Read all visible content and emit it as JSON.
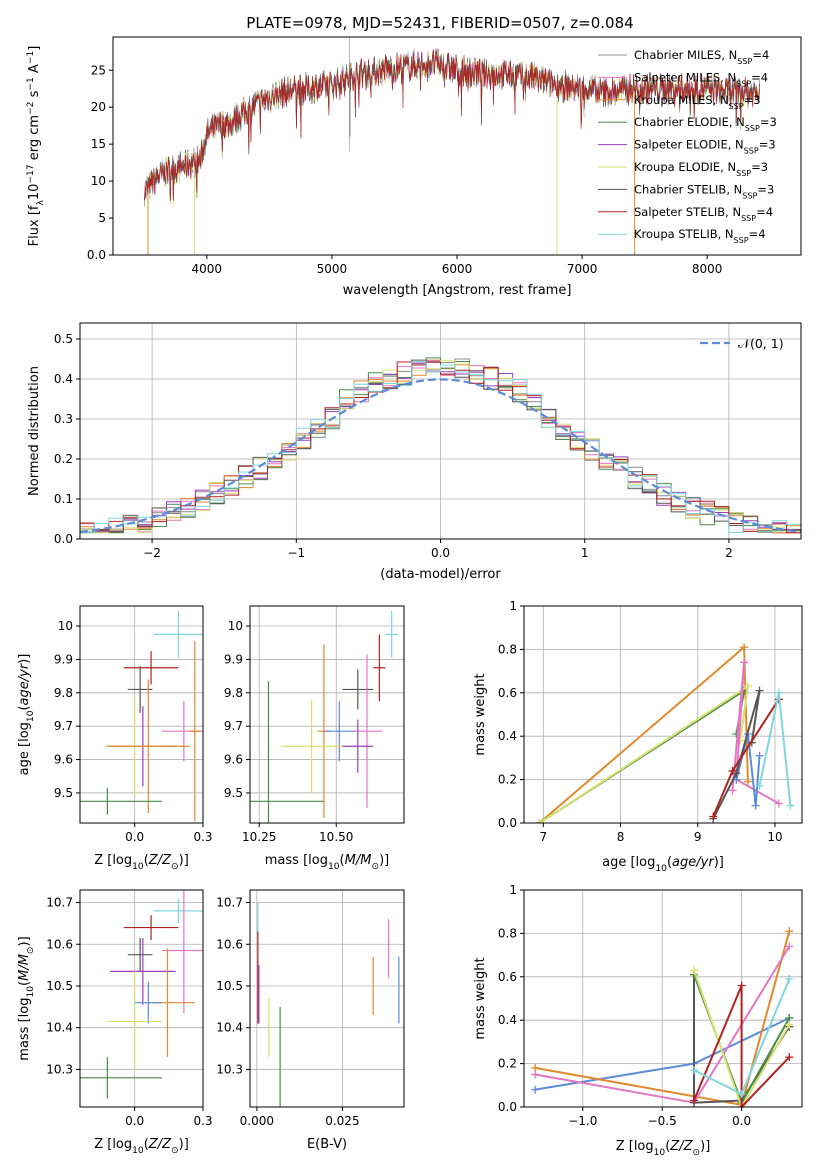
{
  "figure": {
    "title": "PLATE=0978, MJD=52431, FIBERID=0507, z=0.084"
  },
  "chart_data": [
    {
      "id": "spectrum",
      "type": "line",
      "xlabel": "wavelength [Angstrom, rest frame]",
      "ylabel": "Flux [f_λ10^-17 erg cm^-2 s^-1 A^-1]",
      "xlim": [
        3250,
        8750
      ],
      "ylim": [
        0,
        29.5
      ],
      "xticks": [
        4000,
        5000,
        6000,
        7000,
        8000
      ],
      "yticks": [
        0,
        5,
        10,
        15,
        20,
        25
      ],
      "grid": false,
      "legend_position": "top-right",
      "continuum": {
        "x": [
          3500,
          3600,
          3700,
          3800,
          3900,
          3950,
          4000,
          4100,
          4200,
          4400,
          4600,
          4800,
          5000,
          5200,
          5400,
          5600,
          5800,
          6000,
          6200,
          6400,
          6600,
          6800,
          7000,
          7200,
          7400,
          7600,
          7800,
          8000,
          8200,
          8400
        ],
        "y": [
          8.5,
          10.5,
          11.5,
          12.0,
          12.5,
          13.0,
          16.5,
          17.5,
          18.0,
          20.5,
          22.0,
          22.5,
          23.0,
          24.5,
          25.0,
          25.5,
          26.0,
          25.0,
          24.5,
          24.5,
          24.0,
          23.0,
          22.5,
          22.0,
          22.5,
          22.5,
          22.5,
          22.5,
          22.0,
          22.0
        ]
      },
      "series": [
        {
          "name": "Chabrier MILES, N_SSP=4",
          "color": "#8c8c8c"
        },
        {
          "name": "Salpeter MILES, N_SSP=4",
          "color": "#e377c2"
        },
        {
          "name": "Kroupa MILES, N_SSP=3",
          "color": "#e08a2c"
        },
        {
          "name": "Chabrier ELODIE, N_SSP=3",
          "color": "#4a8a4a"
        },
        {
          "name": "Salpeter ELODIE, N_SSP=3",
          "color": "#9b3fbf"
        },
        {
          "name": "Kroupa ELODIE, N_SSP=3",
          "color": "#d8e070"
        },
        {
          "name": "Chabrier STELIB, N_SSP=3",
          "color": "#555555"
        },
        {
          "name": "Salpeter STELIB, N_SSP=4",
          "color": "#b22222"
        },
        {
          "name": "Kroupa STELIB, N_SSP=4",
          "color": "#7fd6dc"
        }
      ]
    },
    {
      "id": "residuals",
      "type": "line",
      "xlabel": "(data-model)/error",
      "ylabel": "Normed distribution",
      "xlim": [
        -2.5,
        2.5
      ],
      "ylim": [
        0,
        0.54
      ],
      "xticks": [
        -2,
        -1,
        0,
        1,
        2
      ],
      "yticks": [
        0.0,
        0.1,
        0.2,
        0.3,
        0.4,
        0.5
      ],
      "grid": true,
      "legend_position": "top-right",
      "gaussian": {
        "name": "𝒩(0, 1)",
        "color": "#5b8bd9"
      },
      "hist_bins": 50,
      "hist_colors": [
        "#8c8c8c",
        "#e377c2",
        "#e08a2c",
        "#4a8a4a",
        "#9b3fbf",
        "#d8e070",
        "#555555",
        "#b22222",
        "#7fd6dc"
      ]
    },
    {
      "id": "age-vs-Z",
      "type": "scatter",
      "xlabel": "Z [log10(Z/Z⊙)]",
      "ylabel": "age [log10(age/yr)]",
      "xlim": [
        -0.2,
        0.25
      ],
      "ylim": [
        9.41,
        10.06
      ],
      "xticks": [
        0.0,
        0.25
      ],
      "yticks": [
        9.5,
        9.6,
        9.7,
        9.8,
        9.9,
        10.0
      ],
      "grid": true,
      "points": [
        {
          "x": 0.16,
          "y": 9.975,
          "xerr": 0.09,
          "yerr": 0.07,
          "color": "#7fd6dc"
        },
        {
          "x": 0.06,
          "y": 9.875,
          "xerr": 0.1,
          "yerr": 0.05,
          "color": "#b22222"
        },
        {
          "x": 0.02,
          "y": 9.81,
          "xerr": 0.045,
          "yerr": 0.07,
          "color": "#555555"
        },
        {
          "x": 0.18,
          "y": 9.685,
          "xerr": 0.08,
          "yerr": 0.09,
          "color": "#e377c2"
        },
        {
          "x": 0.22,
          "y": 9.685,
          "xerr": 0.02,
          "yerr": 0.27,
          "color": "#e08a2c"
        },
        {
          "x": 0.03,
          "y": 9.64,
          "xerr": 0.12,
          "yerr": 0.12,
          "color": "#9b3fbf"
        },
        {
          "x": 0.0,
          "y": 9.64,
          "xerr": 0.11,
          "yerr": 0.15,
          "color": "#d8e070"
        },
        {
          "x": 0.05,
          "y": 9.64,
          "xerr": 0.15,
          "yerr": 0.2,
          "color": "#e08a2c"
        },
        {
          "x": -0.1,
          "y": 9.475,
          "xerr": 0.2,
          "yerr": 0.04,
          "color": "#4a8a4a"
        }
      ]
    },
    {
      "id": "age-vs-mass",
      "type": "scatter",
      "xlabel": "mass [log10(M/M⊙)]",
      "ylabel": "",
      "xlim": [
        10.22,
        10.72
      ],
      "ylim": [
        9.41,
        10.06
      ],
      "xticks": [
        10.25,
        10.5
      ],
      "xticklabels": [
        "10.25",
        "10.50"
      ],
      "yticks": [
        9.5,
        9.6,
        9.7,
        9.8,
        9.9,
        10.0
      ],
      "grid": true,
      "points": [
        {
          "x": 10.68,
          "y": 9.975,
          "xerr": 0.02,
          "yerr": 0.07,
          "color": "#7fd6dc"
        },
        {
          "x": 10.64,
          "y": 9.875,
          "xerr": 0.02,
          "yerr": 0.1,
          "color": "#b22222"
        },
        {
          "x": 10.57,
          "y": 9.81,
          "xerr": 0.05,
          "yerr": 0.06,
          "color": "#555555"
        },
        {
          "x": 10.6,
          "y": 9.685,
          "xerr": 0.05,
          "yerr": 0.23,
          "color": "#e377c2"
        },
        {
          "x": 10.46,
          "y": 9.685,
          "xerr": 0.02,
          "yerr": 0.26,
          "color": "#e08a2c"
        },
        {
          "x": 10.57,
          "y": 9.64,
          "xerr": 0.05,
          "yerr": 0.08,
          "color": "#9b3fbf"
        },
        {
          "x": 10.51,
          "y": 9.685,
          "xerr": 0.05,
          "yerr": 0.09,
          "color": "#5b8bd9"
        },
        {
          "x": 10.42,
          "y": 9.64,
          "xerr": 0.1,
          "yerr": 0.14,
          "color": "#d8e070"
        },
        {
          "x": 10.28,
          "y": 9.475,
          "xerr": 0.18,
          "yerr": 0.36,
          "color": "#4a8a4a"
        }
      ]
    },
    {
      "id": "massweight-vs-age",
      "type": "line",
      "xlabel": "age [log10(age/yr)]",
      "ylabel": "mass weight",
      "xlim": [
        6.75,
        10.35
      ],
      "ylim": [
        0,
        1.0
      ],
      "xticks": [
        7,
        8,
        9,
        10
      ],
      "yticks": [
        0.0,
        0.2,
        0.4,
        0.6,
        0.8,
        1.0
      ],
      "grid": true,
      "series": [
        {
          "color": "#e08a2c",
          "x": [
            6.95,
            9.6,
            9.65
          ],
          "y": [
            0.0,
            0.81,
            0.19
          ]
        },
        {
          "color": "#4a8a4a",
          "x": [
            6.95,
            9.6,
            9.5
          ],
          "y": [
            0.0,
            0.61,
            0.41
          ]
        },
        {
          "color": "#d8e070",
          "x": [
            6.95,
            9.65,
            9.55
          ],
          "y": [
            0.0,
            0.63,
            0.38
          ]
        },
        {
          "color": "#e377c2",
          "x": [
            9.45,
            9.6,
            9.5,
            10.05
          ],
          "y": [
            0.15,
            0.74,
            0.2,
            0.09
          ]
        },
        {
          "color": "#5b8bd9",
          "x": [
            9.5,
            9.65,
            9.75,
            9.8
          ],
          "y": [
            0.2,
            0.41,
            0.08,
            0.31
          ]
        },
        {
          "color": "#555555",
          "x": [
            9.2,
            9.5,
            9.8,
            9.7
          ],
          "y": [
            0.02,
            0.23,
            0.61,
            0.37
          ]
        },
        {
          "color": "#b22222",
          "x": [
            9.2,
            9.45,
            10.05
          ],
          "y": [
            0.03,
            0.24,
            0.57
          ]
        },
        {
          "color": "#7fd6dc",
          "x": [
            9.8,
            10.05,
            10.2
          ],
          "y": [
            0.17,
            0.6,
            0.08
          ]
        }
      ]
    },
    {
      "id": "mass-vs-Z",
      "type": "scatter",
      "xlabel": "Z [log10(Z/Z⊙)]",
      "ylabel": "mass [log10(M/M⊙)]",
      "xlim": [
        -0.2,
        0.25
      ],
      "ylim": [
        10.21,
        10.73
      ],
      "xticks": [
        0.0,
        0.25
      ],
      "yticks": [
        10.3,
        10.4,
        10.5,
        10.6,
        10.7
      ],
      "grid": true,
      "points": [
        {
          "x": 0.16,
          "y": 10.68,
          "xerr": 0.09,
          "yerr": 0.03,
          "color": "#7fd6dc"
        },
        {
          "x": 0.06,
          "y": 10.64,
          "xerr": 0.1,
          "yerr": 0.03,
          "color": "#b22222"
        },
        {
          "x": 0.02,
          "y": 10.575,
          "xerr": 0.045,
          "yerr": 0.04,
          "color": "#555555"
        },
        {
          "x": 0.18,
          "y": 10.585,
          "xerr": 0.08,
          "yerr": 0.15,
          "color": "#e377c2"
        },
        {
          "x": 0.03,
          "y": 10.535,
          "xerr": 0.12,
          "yerr": 0.08,
          "color": "#9b3fbf"
        },
        {
          "x": 0.12,
          "y": 10.46,
          "xerr": 0.1,
          "yerr": 0.13,
          "color": "#e08a2c"
        },
        {
          "x": 0.05,
          "y": 10.46,
          "xerr": 0.05,
          "yerr": 0.05,
          "color": "#5b8bd9"
        },
        {
          "x": 0.0,
          "y": 10.415,
          "xerr": 0.1,
          "yerr": 0.12,
          "color": "#d8e070"
        },
        {
          "x": -0.1,
          "y": 10.28,
          "xerr": 0.2,
          "yerr": 0.05,
          "color": "#4a8a4a"
        }
      ]
    },
    {
      "id": "mass-vs-ebv",
      "type": "scatter",
      "xlabel": "E(B-V)",
      "ylabel": "",
      "xlim": [
        -0.002,
        0.043
      ],
      "ylim": [
        10.21,
        10.73
      ],
      "xticks": [
        0.0,
        0.025
      ],
      "xticklabels": [
        "0.000",
        "0.025"
      ],
      "yticks": [
        10.3,
        10.4,
        10.5,
        10.6,
        10.7
      ],
      "grid": true,
      "points": [
        {
          "x": 0.0003,
          "y": 10.66,
          "yerr": 0.04,
          "color": "#7fd6dc"
        },
        {
          "x": 0.0003,
          "y": 10.52,
          "yerr": 0.11,
          "color": "#b22222"
        },
        {
          "x": 0.0006,
          "y": 10.48,
          "yerr": 0.07,
          "color": "#9b3fbf"
        },
        {
          "x": 0.0035,
          "y": 10.4,
          "yerr": 0.07,
          "color": "#d8e070"
        },
        {
          "x": 0.0068,
          "y": 10.3,
          "yerr": 0.15,
          "color": "#4a8a4a"
        },
        {
          "x": 0.034,
          "y": 10.5,
          "yerr": 0.07,
          "color": "#e08a2c"
        },
        {
          "x": 0.0385,
          "y": 10.59,
          "yerr": 0.07,
          "color": "#e377c2"
        },
        {
          "x": 0.0415,
          "y": 10.49,
          "yerr": 0.08,
          "color": "#5b8bd9"
        }
      ]
    },
    {
      "id": "massweight-vs-Z",
      "type": "line",
      "xlabel": "Z [log10(Z/Z⊙)]",
      "ylabel": "mass weight",
      "xlim": [
        -1.37,
        0.38
      ],
      "ylim": [
        0,
        1.0
      ],
      "xticks": [
        -1.0,
        -0.5,
        0.0
      ],
      "xticklabels": [
        "−1.0",
        "−0.5",
        "0.0"
      ],
      "yticks": [
        0.0,
        0.2,
        0.4,
        0.6,
        0.8,
        1.0
      ],
      "grid": true,
      "series": [
        {
          "color": "#5b8bd9",
          "x": [
            -1.3,
            -0.3,
            0.3
          ],
          "y": [
            0.08,
            0.2,
            0.41
          ]
        },
        {
          "color": "#e08a2c",
          "x": [
            -1.3,
            0.0,
            0.3
          ],
          "y": [
            0.18,
            0.01,
            0.81
          ]
        },
        {
          "color": "#e377c2",
          "x": [
            -1.3,
            -0.3,
            0.3
          ],
          "y": [
            0.15,
            0.02,
            0.74
          ]
        },
        {
          "color": "#555555",
          "x": [
            -0.3,
            -0.3,
            0.0,
            0.3
          ],
          "y": [
            0.61,
            0.02,
            0.03,
            0.37
          ]
        },
        {
          "color": "#4a8a4a",
          "x": [
            -0.3,
            0.0,
            0.3
          ],
          "y": [
            0.61,
            0.02,
            0.41
          ]
        },
        {
          "color": "#d8e070",
          "x": [
            -0.3,
            0.0,
            0.3
          ],
          "y": [
            0.63,
            0.0,
            0.38
          ]
        },
        {
          "color": "#b22222",
          "x": [
            -0.3,
            0.0,
            0.0,
            0.3
          ],
          "y": [
            0.03,
            0.56,
            0.0,
            0.23
          ]
        },
        {
          "color": "#7fd6dc",
          "x": [
            -0.3,
            0.0,
            0.3
          ],
          "y": [
            0.17,
            0.06,
            0.59
          ]
        }
      ]
    }
  ]
}
